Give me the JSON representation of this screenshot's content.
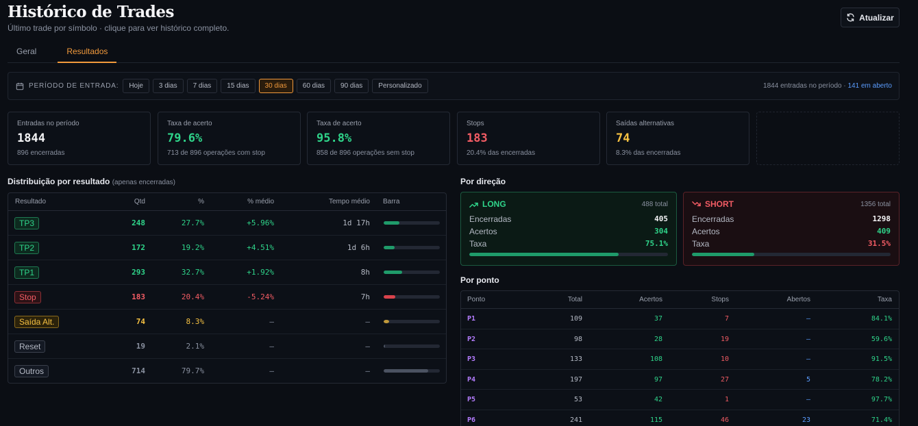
{
  "header": {
    "title": "Histórico de Trades",
    "subtitle": "Último trade por símbolo · clique para ver histórico completo.",
    "refresh_label": "Atualizar"
  },
  "tabs": [
    {
      "label": "Geral",
      "active": false
    },
    {
      "label": "Resultados",
      "active": true
    }
  ],
  "period": {
    "label": "PERÍODO DE ENTRADA:",
    "options": [
      "Hoje",
      "3 dias",
      "7 dias",
      "15 dias",
      "30 dias",
      "60 dias",
      "90 dias",
      "Personalizado"
    ],
    "selected": "30 dias",
    "entries_text": "1844 entradas no período",
    "separator": "·",
    "open_text": "141 em aberto"
  },
  "kpis": [
    {
      "label": "Entradas no período",
      "value": "1844",
      "sub": "896 encerradas",
      "color": "#f4f4f6"
    },
    {
      "label": "Taxa de acerto",
      "value": "79.6%",
      "sub": "713 de 896 operações com stop",
      "color": "#2fd48a"
    },
    {
      "label": "Taxa de acerto",
      "value": "95.8%",
      "sub": "858 de 896 operações sem stop",
      "color": "#2fd48a"
    },
    {
      "label": "Stops",
      "value": "183",
      "sub": "20.4% das encerradas",
      "color": "#f25c64"
    },
    {
      "label": "Saídas alternativas",
      "value": "74",
      "sub": "8.3% das encerradas",
      "color": "#f6c142"
    }
  ],
  "distribution": {
    "title": "Distribuição por resultado",
    "note": "(apenas encerradas)",
    "columns": [
      "Resultado",
      "Qtd",
      "%",
      "% médio",
      "Tempo médio",
      "Barra"
    ],
    "rows": [
      {
        "label": "TP3",
        "qtd": "248",
        "pct": "27.7%",
        "avg": "+5.96%",
        "time": "1d 17h",
        "bar": 0.277,
        "style": "green"
      },
      {
        "label": "TP2",
        "qtd": "172",
        "pct": "19.2%",
        "avg": "+4.51%",
        "time": "1d 6h",
        "bar": 0.192,
        "style": "green"
      },
      {
        "label": "TP1",
        "qtd": "293",
        "pct": "32.7%",
        "avg": "+1.92%",
        "time": "8h",
        "bar": 0.327,
        "style": "green"
      },
      {
        "label": "Stop",
        "qtd": "183",
        "pct": "20.4%",
        "avg": "-5.24%",
        "time": "7h",
        "bar": 0.204,
        "style": "red"
      },
      {
        "label": "Saída Alt.",
        "qtd": "74",
        "pct": "8.3%",
        "avg": "—",
        "time": "—",
        "bar": 0.083,
        "style": "yellow"
      },
      {
        "label": "Reset",
        "qtd": "19",
        "pct": "2.1%",
        "avg": "—",
        "time": "—",
        "bar": 0.021,
        "style": "gray"
      },
      {
        "label": "Outros",
        "qtd": "714",
        "pct": "79.7%",
        "avg": "—",
        "time": "—",
        "bar": 0.797,
        "style": "gray"
      }
    ]
  },
  "direction": {
    "title": "Por direção",
    "long": {
      "name": "LONG",
      "total": "488 total",
      "closed_label": "Encerradas",
      "closed": "405",
      "hits_label": "Acertos",
      "hits": "304",
      "rate_label": "Taxa",
      "rate": "75.1%",
      "rate_value": 0.751
    },
    "short": {
      "name": "SHORT",
      "total": "1356 total",
      "closed_label": "Encerradas",
      "closed": "1298",
      "hits_label": "Acertos",
      "hits": "409",
      "rate_label": "Taxa",
      "rate": "31.5%",
      "rate_value": 0.315
    }
  },
  "points": {
    "title": "Por ponto",
    "columns": [
      "Ponto",
      "Total",
      "Acertos",
      "Stops",
      "Abertos",
      "Taxa"
    ],
    "rows": [
      {
        "p": "P1",
        "total": "109",
        "hits": "37",
        "stops": "7",
        "open": "—",
        "rate": "84.1%"
      },
      {
        "p": "P2",
        "total": "98",
        "hits": "28",
        "stops": "19",
        "open": "—",
        "rate": "59.6%"
      },
      {
        "p": "P3",
        "total": "133",
        "hits": "108",
        "stops": "10",
        "open": "—",
        "rate": "91.5%"
      },
      {
        "p": "P4",
        "total": "197",
        "hits": "97",
        "stops": "27",
        "open": "5",
        "rate": "78.2%"
      },
      {
        "p": "P5",
        "total": "53",
        "hits": "42",
        "stops": "1",
        "open": "—",
        "rate": "97.7%"
      },
      {
        "p": "P6",
        "total": "241",
        "hits": "115",
        "stops": "46",
        "open": "23",
        "rate": "71.4%"
      }
    ]
  },
  "colors": {
    "green": "#2fd48a",
    "red": "#f25c64",
    "yellow": "#f6c142",
    "gray": "#4b5261",
    "accent": "#f29a3c"
  }
}
